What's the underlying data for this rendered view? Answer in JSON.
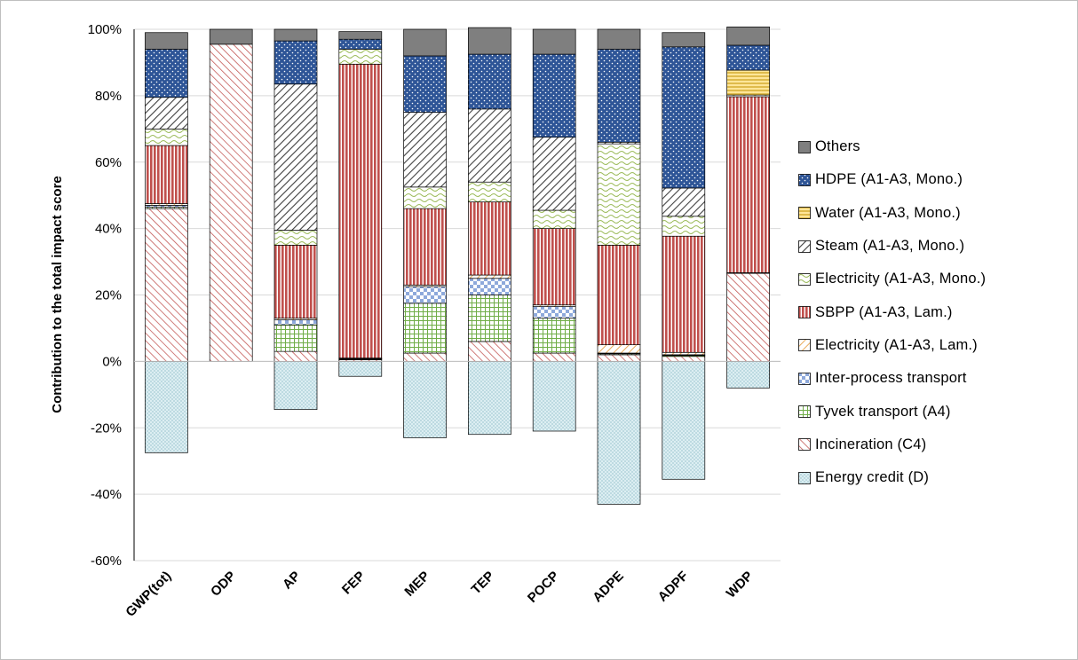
{
  "chart_data": {
    "type": "bar",
    "stacked": true,
    "ylabel": "Contribution to the total impact score",
    "xlabel": "",
    "ylim": [
      -60,
      100
    ],
    "yticks": [
      100,
      80,
      60,
      40,
      20,
      0,
      -20,
      -40,
      -60
    ],
    "ytick_labels": [
      "100%",
      "80%",
      "60%",
      "40%",
      "20%",
      "0%",
      "-20%",
      "-40%",
      "-60%"
    ],
    "grid": "horizontal",
    "legend_position": "right",
    "categories": [
      "GWP(tot)",
      "ODP",
      "AP",
      "FEP",
      "MEP",
      "TEP",
      "POCP",
      "ADPE",
      "ADPF",
      "WDP"
    ],
    "series": [
      {
        "name": "Energy credit (D)",
        "pattern": "dots-lightblue",
        "color": "#dceef2",
        "values": [
          -27.5,
          0,
          -14.5,
          -4.5,
          -23,
          -22,
          -21,
          -43,
          -35.5,
          -8
        ]
      },
      {
        "name": "Incineration (C4)",
        "pattern": "diag-red",
        "color": "#c0504d",
        "values": [
          46,
          95.5,
          3,
          0.5,
          2.5,
          6,
          2.5,
          2,
          1.5,
          26.5
        ]
      },
      {
        "name": "Tyvek transport (A4)",
        "pattern": "grid-green",
        "color": "#9bbb59",
        "values": [
          0.5,
          0,
          8,
          0.2,
          15,
          14,
          10.5,
          0.3,
          0.3,
          0
        ]
      },
      {
        "name": "Inter-process transport",
        "pattern": "checker-blue",
        "color": "#8ea9db",
        "values": [
          0.5,
          0,
          1.5,
          0.1,
          5,
          5,
          3.5,
          0.2,
          0.2,
          0
        ]
      },
      {
        "name": "Electricity (A1-A3, Lam.)",
        "pattern": "diag-orange",
        "color": "#f2c88f",
        "values": [
          0.5,
          0,
          0.5,
          0.2,
          0.5,
          1,
          0.5,
          2.5,
          0.7,
          0.2
        ]
      },
      {
        "name": "SBPP (A1-A3, Lam.)",
        "pattern": "vlines-red",
        "color": "#c0504d",
        "values": [
          17.5,
          0,
          22,
          88.5,
          23,
          22,
          23,
          30,
          35,
          53
        ]
      },
      {
        "name": "Electricity (A1-A3, Mono.)",
        "pattern": "wave-green",
        "color": "#9bbb59",
        "values": [
          5,
          0,
          4.5,
          4.5,
          6.5,
          6,
          5.5,
          30.5,
          6,
          0.5
        ]
      },
      {
        "name": "Steam (A1-A3, Mono.)",
        "pattern": "diag-grey",
        "color": "#595959",
        "values": [
          9.5,
          0,
          44,
          0,
          22.5,
          22,
          22,
          0.5,
          8.5,
          0
        ]
      },
      {
        "name": "Water (A1-A3, Mono.)",
        "pattern": "hlines-yellow",
        "color": "#ffd966",
        "values": [
          0,
          0,
          0,
          0,
          0,
          0,
          0,
          0,
          0,
          7.5
        ]
      },
      {
        "name": "HDPE (A1-A3, Mono.)",
        "pattern": "dots-navy",
        "color": "#2e5597",
        "values": [
          14.5,
          0,
          13,
          3,
          17,
          16.5,
          25,
          28,
          42.5,
          7.5
        ]
      },
      {
        "name": "Others",
        "pattern": "solid-grey",
        "color": "#7f7f7f",
        "values": [
          5,
          4.5,
          3.5,
          2.3,
          8,
          8,
          7.5,
          6,
          4.3,
          5.5
        ]
      }
    ]
  },
  "legend_order": [
    "Others",
    "HDPE (A1-A3, Mono.)",
    "Water (A1-A3, Mono.)",
    "Steam (A1-A3, Mono.)",
    "Electricity (A1-A3, Mono.)",
    "SBPP (A1-A3, Lam.)",
    "Electricity (A1-A3, Lam.)",
    "Inter-process transport",
    "Tyvek transport (A4)",
    "Incineration (C4)",
    "Energy credit (D)"
  ]
}
